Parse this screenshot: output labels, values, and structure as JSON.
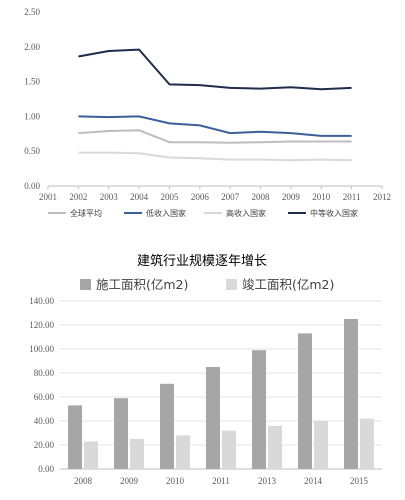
{
  "chart_data": [
    {
      "type": "line",
      "title": "",
      "xlabel": "",
      "ylabel": "",
      "x": [
        "2001",
        "2002",
        "2003",
        "2004",
        "2005",
        "2006",
        "2007",
        "2008",
        "2009",
        "2010",
        "2011",
        "2012"
      ],
      "ylim": [
        0,
        2.5
      ],
      "yticks": [
        "0.00",
        "0.50",
        "1.00",
        "1.50",
        "2.00",
        "2.50"
      ],
      "grid": false,
      "legend_position": "bottom",
      "colors": {
        "全球平均": "#bdbdbd",
        "低收入国家": "#3b5f9a",
        "高收入国家": "#d9d9d9",
        "中等收入国家": "#1f2d4a"
      },
      "series": [
        {
          "name": "全球平均",
          "values": [
            null,
            0.76,
            0.79,
            0.8,
            0.63,
            0.63,
            0.62,
            0.63,
            0.64,
            0.64,
            0.64,
            null
          ]
        },
        {
          "name": "低收入国家",
          "values": [
            null,
            1.0,
            0.99,
            1.0,
            0.9,
            0.87,
            0.76,
            0.78,
            0.76,
            0.72,
            0.72,
            null
          ]
        },
        {
          "name": "高收入国家",
          "values": [
            null,
            0.48,
            0.48,
            0.47,
            0.41,
            0.4,
            0.38,
            0.38,
            0.37,
            0.38,
            0.37,
            null
          ]
        },
        {
          "name": "中等收入国家",
          "values": [
            null,
            1.86,
            1.94,
            1.96,
            1.46,
            1.45,
            1.41,
            1.4,
            1.42,
            1.39,
            1.41,
            null
          ]
        }
      ]
    },
    {
      "type": "bar",
      "title": "建筑行业规模逐年增长",
      "xlabel": "",
      "ylabel": "",
      "categories": [
        "2008",
        "2009",
        "2010",
        "2011",
        "2013",
        "2014",
        "2015"
      ],
      "ylim": [
        0,
        140
      ],
      "yticks": [
        "0.00",
        "20.00",
        "40.00",
        "60.00",
        "80.00",
        "100.00",
        "120.00",
        "140.00"
      ],
      "grid": true,
      "legend_position": "top",
      "colors": {
        "施工面积(亿m2)": "#a6a6a6",
        "竣工面积(亿m2)": "#d9d9d9"
      },
      "series": [
        {
          "name": "施工面积(亿m2)",
          "values": [
            53,
            59,
            71,
            85,
            99,
            113,
            125
          ]
        },
        {
          "name": "竣工面积(亿m2)",
          "values": [
            23,
            25,
            28,
            32,
            36,
            40,
            42
          ]
        }
      ]
    }
  ]
}
